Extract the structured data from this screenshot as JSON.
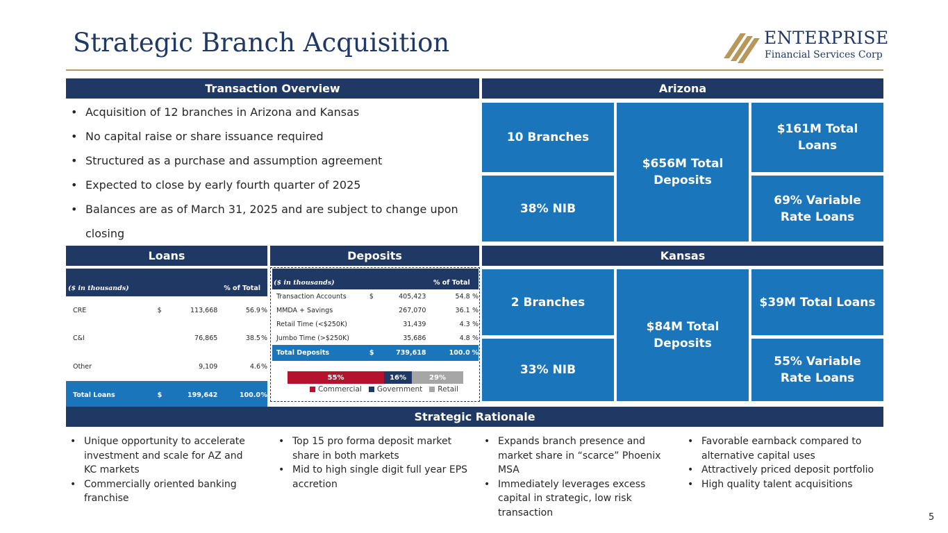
{
  "title": "Strategic Branch Acquisition",
  "logo": {
    "word": "ENTERPRISE",
    "sub": "Financial Services Corp"
  },
  "page_number": "5",
  "overview": {
    "header": "Transaction Overview",
    "bullets": [
      "Acquisition of 12 branches in Arizona and Kansas",
      "No capital raise or share issuance required",
      "Structured as a purchase and assumption agreement",
      "Expected to close by early fourth quarter of 2025",
      "Balances are as of March 31, 2025 and are subject to change upon closing"
    ]
  },
  "arizona": {
    "header": "Arizona",
    "branches": "10 Branches",
    "deposits": "$656M Total Deposits",
    "loans": "$161M Total Loans",
    "nib": "38% NIB",
    "variable": "69% Variable Rate Loans"
  },
  "kansas": {
    "header": "Kansas",
    "branches": "2 Branches",
    "deposits": "$84M Total Deposits",
    "loans": "$39M Total Loans",
    "nib": "33% NIB",
    "variable": "55% Variable Rate Loans"
  },
  "loans": {
    "header": "Loans",
    "units": "($ in thousands)",
    "pct_header": "% of Total",
    "rows": [
      {
        "label": "CRE",
        "dollar": "$",
        "amount": "113,668",
        "pct": "56.9",
        "pct_sign": "%"
      },
      {
        "label": "C&I",
        "dollar": "",
        "amount": "76,865",
        "pct": "38.5",
        "pct_sign": "%"
      },
      {
        "label": "Other",
        "dollar": "",
        "amount": "9,109",
        "pct": "4.6",
        "pct_sign": "%"
      }
    ],
    "total": {
      "label": "Total Loans",
      "dollar": "$",
      "amount": "199,642",
      "pct": "100.0",
      "pct_sign": "%"
    }
  },
  "deposits": {
    "header": "Deposits",
    "units": "($ in thousands)",
    "pct_header": "% of Total",
    "rows": [
      {
        "label": "Transaction Accounts",
        "dollar": "$",
        "amount": "405,423",
        "pct": "54.8",
        "pct_sign": "%"
      },
      {
        "label": "MMDA + Savings",
        "dollar": "",
        "amount": "267,070",
        "pct": "36.1",
        "pct_sign": "%"
      },
      {
        "label": "Retail Time (<$250K)",
        "dollar": "",
        "amount": "31,439",
        "pct": "4.3",
        "pct_sign": "%"
      },
      {
        "label": "Jumbo Time (>$250K)",
        "dollar": "",
        "amount": "35,686",
        "pct": "4.8",
        "pct_sign": "%"
      }
    ],
    "total": {
      "label": "Total Deposits",
      "dollar": "$",
      "amount": "739,618",
      "pct": "100.0",
      "pct_sign": "%"
    }
  },
  "chart_data": {
    "type": "bar",
    "orientation": "horizontal-stacked",
    "categories": [
      "Commercial",
      "Government",
      "Retail"
    ],
    "values": [
      55,
      16,
      29
    ],
    "labels": [
      "55%",
      "16%",
      "29%"
    ],
    "colors": [
      "#b5122e",
      "#1f3864",
      "#a6a6a6"
    ],
    "legend": "bottom"
  },
  "rationale": {
    "header": "Strategic Rationale",
    "columns": [
      [
        "Unique opportunity to accelerate investment and scale for AZ and KC markets",
        "Commercially oriented banking franchise"
      ],
      [
        "Top 15 pro forma deposit market share in both markets",
        "Mid to high single digit full year EPS accretion"
      ],
      [
        "Expands branch presence and market share in “scarce” Phoenix MSA",
        "Immediately leverages excess capital in strategic, low risk transaction"
      ],
      [
        "Favorable earnback compared to alternative capital uses",
        "Attractively priced deposit portfolio",
        "High quality talent acquisitions"
      ]
    ]
  }
}
